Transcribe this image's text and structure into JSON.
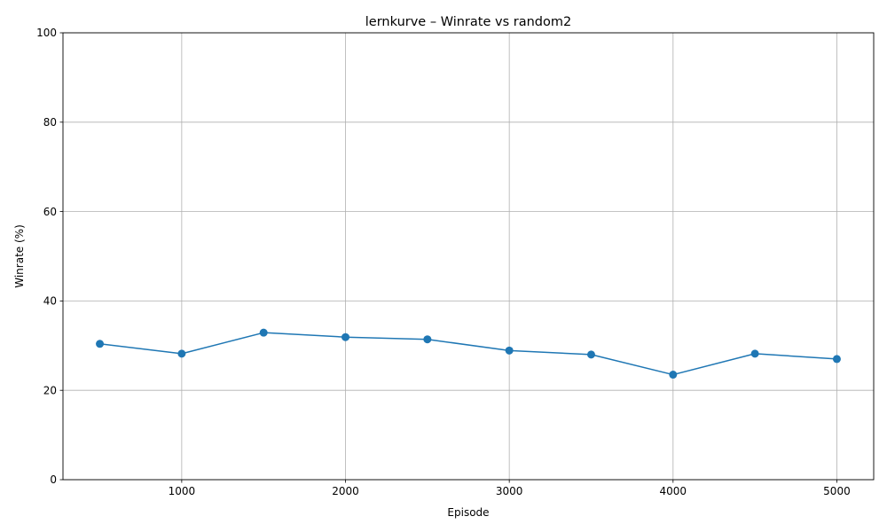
{
  "chart_data": {
    "type": "line",
    "title": "lernkurve – Winrate vs random2",
    "xlabel": "Episode",
    "ylabel": "Winrate (%)",
    "x": [
      500,
      1000,
      1500,
      2000,
      2500,
      3000,
      3500,
      4000,
      4500,
      5000
    ],
    "series": [
      {
        "values": [
          30.4,
          28.2,
          32.9,
          31.9,
          31.4,
          28.9,
          28.0,
          23.5,
          28.2,
          27.0
        ],
        "color": "#1f77b4",
        "marker": "circle"
      }
    ],
    "xlim": [
      275,
      5225
    ],
    "ylim": [
      0,
      100
    ],
    "xticks": [
      1000,
      2000,
      3000,
      4000,
      5000
    ],
    "yticks": [
      0,
      20,
      40,
      60,
      80,
      100
    ],
    "grid": true,
    "legend": "none"
  }
}
